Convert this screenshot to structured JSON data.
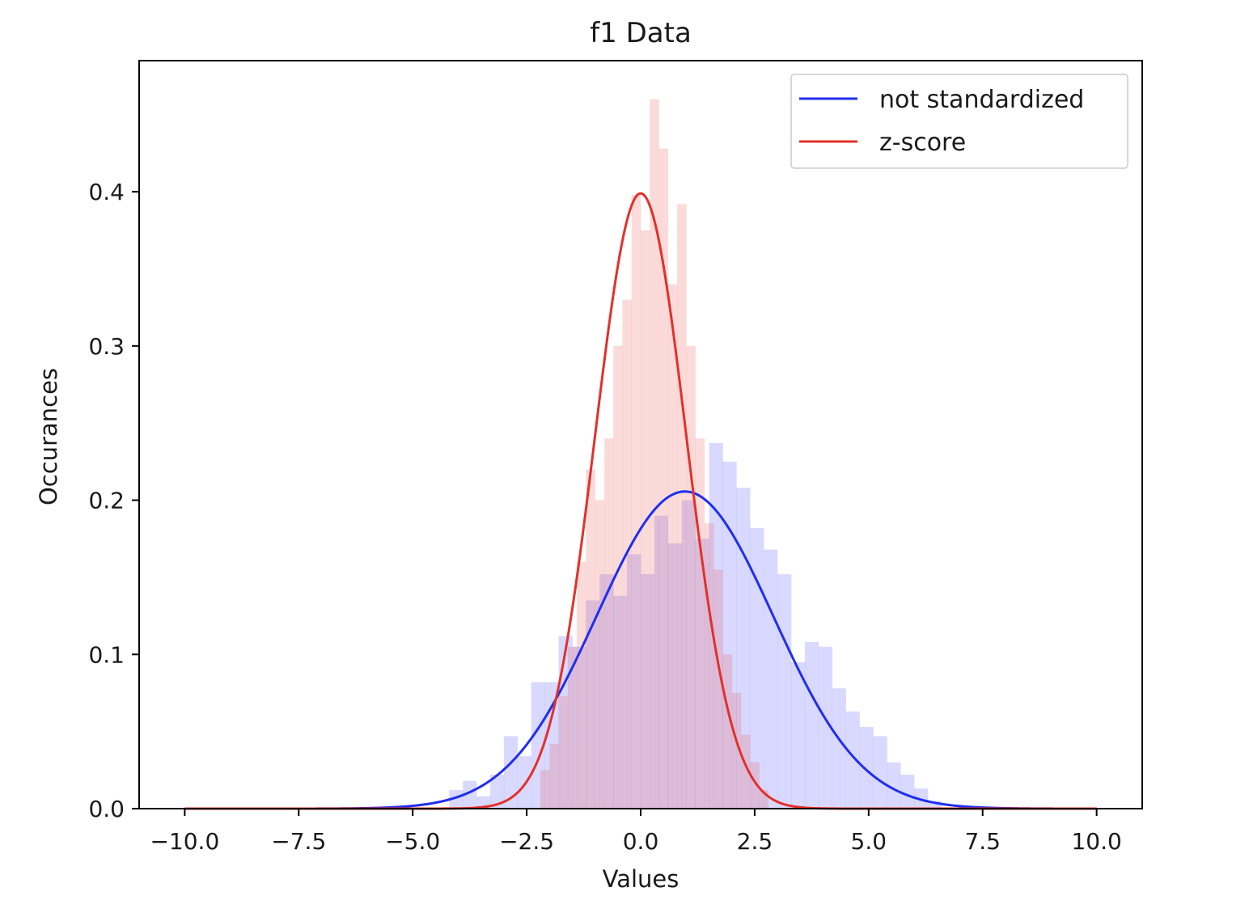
{
  "chart_data": {
    "type": "bar",
    "title": "f1 Data",
    "xlabel": "Values",
    "ylabel": "Occurances",
    "xlim": [
      -11.0,
      11.0
    ],
    "ylim": [
      0,
      0.485
    ],
    "xticks": [
      -10.0,
      -7.5,
      -5.0,
      -2.5,
      0.0,
      2.5,
      5.0,
      7.5,
      10.0
    ],
    "xtick_labels": [
      "−10.0",
      "−7.5",
      "−5.0",
      "−2.5",
      "0.0",
      "2.5",
      "5.0",
      "7.5",
      "10.0"
    ],
    "yticks": [
      0.0,
      0.1,
      0.2,
      0.3,
      0.4
    ],
    "ytick_labels": [
      "0.0",
      "0.1",
      "0.2",
      "0.3",
      "0.4"
    ],
    "grid": false,
    "legend_position": "top-right",
    "histograms": [
      {
        "series": "not standardized",
        "color": "#0000ff",
        "opacity": 0.15,
        "bins": [
          [
            -4.2,
            -3.9,
            0.012
          ],
          [
            -3.9,
            -3.6,
            0.018
          ],
          [
            -3.6,
            -3.3,
            0.008
          ],
          [
            -3.3,
            -3.0,
            0.022
          ],
          [
            -3.0,
            -2.7,
            0.047
          ],
          [
            -2.7,
            -2.4,
            0.034
          ],
          [
            -2.4,
            -2.1,
            0.082
          ],
          [
            -2.1,
            -1.8,
            0.082
          ],
          [
            -1.8,
            -1.5,
            0.112
          ],
          [
            -1.5,
            -1.2,
            0.105
          ],
          [
            -1.2,
            -0.9,
            0.135
          ],
          [
            -0.9,
            -0.6,
            0.152
          ],
          [
            -0.6,
            -0.3,
            0.138
          ],
          [
            -0.3,
            0.0,
            0.165
          ],
          [
            0.0,
            0.3,
            0.152
          ],
          [
            0.3,
            0.6,
            0.19
          ],
          [
            0.6,
            0.9,
            0.172
          ],
          [
            0.9,
            1.2,
            0.2
          ],
          [
            1.2,
            1.5,
            0.175
          ],
          [
            1.5,
            1.8,
            0.237
          ],
          [
            1.8,
            2.1,
            0.225
          ],
          [
            2.1,
            2.4,
            0.208
          ],
          [
            2.4,
            2.7,
            0.182
          ],
          [
            2.7,
            3.0,
            0.168
          ],
          [
            3.0,
            3.3,
            0.152
          ],
          [
            3.3,
            3.6,
            0.095
          ],
          [
            3.6,
            3.9,
            0.108
          ],
          [
            3.9,
            4.2,
            0.105
          ],
          [
            4.2,
            4.5,
            0.078
          ],
          [
            4.5,
            4.8,
            0.063
          ],
          [
            4.8,
            5.1,
            0.053
          ],
          [
            5.1,
            5.4,
            0.047
          ],
          [
            5.4,
            5.7,
            0.03
          ],
          [
            5.7,
            6.0,
            0.022
          ],
          [
            6.0,
            6.3,
            0.013
          ],
          [
            6.3,
            6.6,
            0.005
          ]
        ]
      },
      {
        "series": "z-score",
        "color": "#e8392b",
        "opacity": 0.18,
        "bins": [
          [
            -2.2,
            -2.0,
            0.025
          ],
          [
            -2.0,
            -1.8,
            0.042
          ],
          [
            -1.8,
            -1.6,
            0.073
          ],
          [
            -1.6,
            -1.4,
            0.105
          ],
          [
            -1.4,
            -1.2,
            0.16
          ],
          [
            -1.2,
            -1.0,
            0.22
          ],
          [
            -1.0,
            -0.8,
            0.2
          ],
          [
            -0.8,
            -0.6,
            0.24
          ],
          [
            -0.6,
            -0.4,
            0.3
          ],
          [
            -0.4,
            -0.2,
            0.33
          ],
          [
            -0.2,
            0.0,
            0.398
          ],
          [
            0.0,
            0.2,
            0.375
          ],
          [
            0.2,
            0.4,
            0.46
          ],
          [
            0.4,
            0.6,
            0.428
          ],
          [
            0.6,
            0.8,
            0.34
          ],
          [
            0.8,
            1.0,
            0.392
          ],
          [
            1.0,
            1.2,
            0.3
          ],
          [
            1.2,
            1.4,
            0.24
          ],
          [
            1.4,
            1.6,
            0.185
          ],
          [
            1.6,
            1.8,
            0.155
          ],
          [
            1.8,
            2.0,
            0.1
          ],
          [
            2.0,
            2.2,
            0.075
          ],
          [
            2.2,
            2.4,
            0.048
          ],
          [
            2.4,
            2.6,
            0.03
          ],
          [
            2.6,
            2.8,
            0.012
          ]
        ]
      }
    ],
    "series": [
      {
        "name": "not standardized",
        "color": "#1f2ef0",
        "kind": "normal_pdf",
        "mean": 0.97,
        "std": 1.94,
        "x_range": [
          -10.0,
          10.0
        ]
      },
      {
        "name": "z-score",
        "color": "#e3302a",
        "kind": "normal_pdf",
        "mean": 0.0,
        "std": 1.0,
        "x_range": [
          -10.0,
          10.0
        ]
      }
    ]
  }
}
